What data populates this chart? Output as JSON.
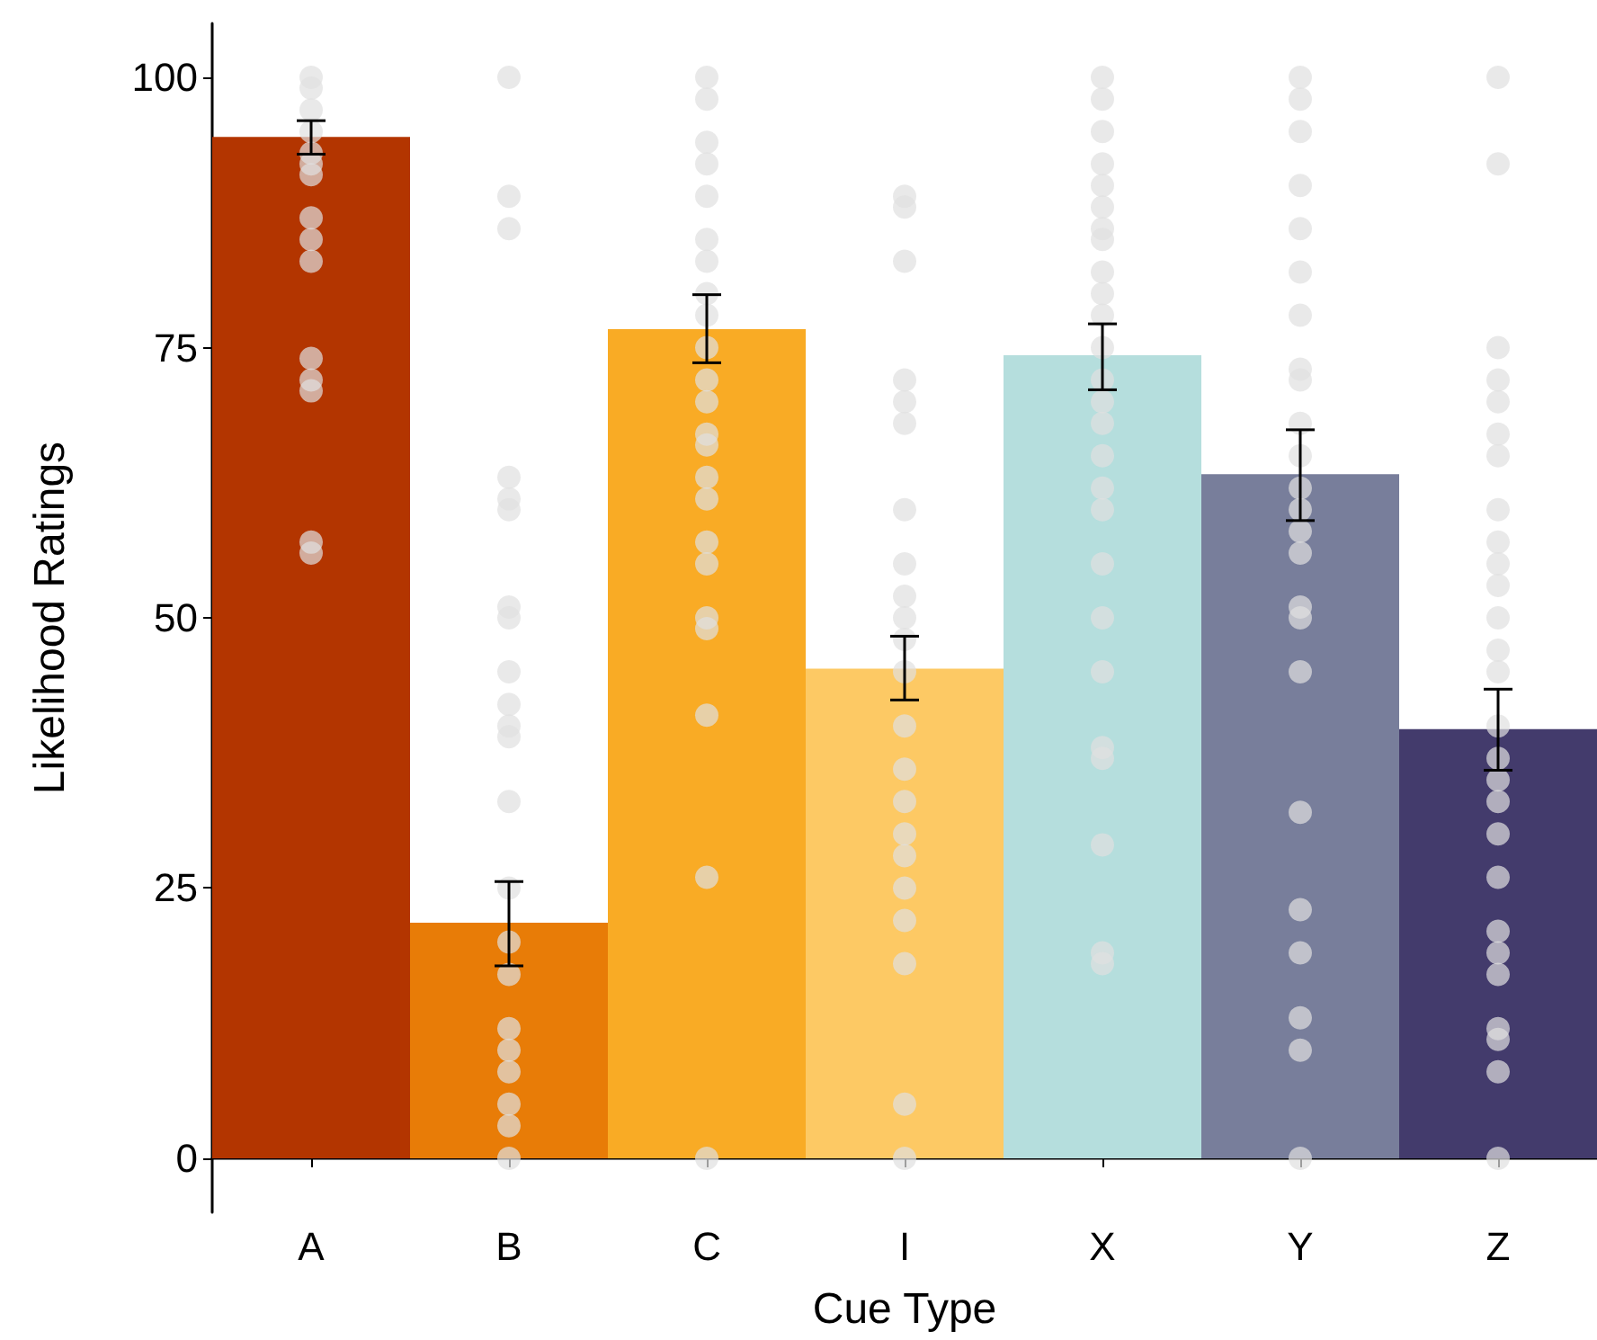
{
  "chart_data": {
    "type": "bar",
    "xlabel": "Cue Type",
    "ylabel": "Likelihood Ratings",
    "categories": [
      "A",
      "B",
      "C",
      "I",
      "X",
      "Y",
      "Z"
    ],
    "ylim": [
      -5,
      105
    ],
    "yticks": [
      0,
      25,
      50,
      75,
      100
    ],
    "grid": false,
    "series": [
      {
        "values": [
          94.5,
          21.8,
          76.7,
          45.3,
          74.3,
          63.3,
          39.7
        ],
        "colors": [
          "#b33500",
          "#e87c07",
          "#f9ab25",
          "#fdc964",
          "#b5dedd",
          "#787e9b",
          "#433b6c"
        ],
        "errors": [
          [
            92.9,
            96.0
          ],
          [
            17.8,
            25.6
          ],
          [
            73.6,
            79.9
          ],
          [
            42.4,
            48.3
          ],
          [
            71.1,
            77.2
          ],
          [
            59.0,
            67.4
          ],
          [
            35.9,
            43.4
          ]
        ]
      },
      {
        "type": "scatter",
        "color": "#e0e0e0",
        "marker": "circle",
        "x": [
          "A",
          "A",
          "A",
          "A",
          "A",
          "A",
          "A",
          "A",
          "A",
          "A",
          "A",
          "A",
          "A",
          "A",
          "A",
          "B",
          "B",
          "B",
          "B",
          "B",
          "B",
          "B",
          "B",
          "B",
          "B",
          "B",
          "B",
          "B",
          "B",
          "B",
          "B",
          "B",
          "B",
          "B",
          "B",
          "B",
          "B",
          "C",
          "C",
          "C",
          "C",
          "C",
          "C",
          "C",
          "C",
          "C",
          "C",
          "C",
          "C",
          "C",
          "C",
          "C",
          "C",
          "C",
          "C",
          "C",
          "C",
          "C",
          "C",
          "C",
          "I",
          "I",
          "I",
          "I",
          "I",
          "I",
          "I",
          "I",
          "I",
          "I",
          "I",
          "I",
          "I",
          "I",
          "I",
          "I",
          "I",
          "I",
          "I",
          "I",
          "I",
          "I",
          "X",
          "X",
          "X",
          "X",
          "X",
          "X",
          "X",
          "X",
          "X",
          "X",
          "X",
          "X",
          "X",
          "X",
          "X",
          "X",
          "X",
          "X",
          "X",
          "X",
          "X",
          "X",
          "X",
          "X",
          "X",
          "X",
          "Y",
          "Y",
          "Y",
          "Y",
          "Y",
          "Y",
          "Y",
          "Y",
          "Y",
          "Y",
          "Y",
          "Y",
          "Y",
          "Y",
          "Y",
          "Y",
          "Y",
          "Y",
          "Y",
          "Y",
          "Y",
          "Y",
          "Y",
          "Y",
          "Z",
          "Z",
          "Z",
          "Z",
          "Z",
          "Z",
          "Z",
          "Z",
          "Z",
          "Z",
          "Z",
          "Z",
          "Z",
          "Z",
          "Z",
          "Z",
          "Z",
          "Z",
          "Z",
          "Z",
          "Z",
          "Z",
          "Z",
          "Z",
          "Z",
          "Z",
          "Z"
        ],
        "values": [
          100,
          99,
          97,
          95,
          93,
          92,
          91,
          87,
          85,
          83,
          74,
          71,
          72,
          57,
          56,
          100,
          89,
          86,
          63,
          61,
          60,
          51,
          50,
          45,
          42,
          40,
          39,
          33,
          25,
          20,
          17,
          12,
          10,
          8,
          5,
          3,
          0,
          100,
          98,
          94,
          92,
          89,
          85,
          83,
          80,
          78,
          75,
          72,
          70,
          67,
          66,
          63,
          61,
          57,
          55,
          50,
          49,
          41,
          26,
          0,
          89,
          88,
          83,
          72,
          70,
          68,
          60,
          55,
          52,
          50,
          48,
          45,
          40,
          36,
          33,
          30,
          28,
          25,
          22,
          18,
          5,
          0,
          100,
          98,
          95,
          92,
          90,
          88,
          86,
          85,
          82,
          80,
          78,
          75,
          72,
          70,
          68,
          65,
          62,
          60,
          55,
          50,
          45,
          38,
          37,
          29,
          19,
          18,
          100,
          98,
          95,
          90,
          86,
          82,
          78,
          73,
          72,
          68,
          65,
          62,
          60,
          58,
          56,
          51,
          50,
          45,
          32,
          23,
          19,
          13,
          10,
          0,
          100,
          92,
          75,
          72,
          70,
          67,
          65,
          60,
          57,
          55,
          53,
          50,
          47,
          45,
          40,
          37,
          35,
          33,
          30,
          26,
          21,
          19,
          17,
          12,
          11,
          8,
          0
        ]
      }
    ]
  }
}
